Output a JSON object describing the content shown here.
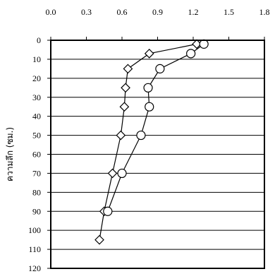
{
  "chart_data": {
    "type": "scatter",
    "title": "",
    "xlabel": "",
    "ylabel": "ความลึก (ซม.)",
    "xlim": [
      0,
      1.8
    ],
    "ylim": [
      0,
      120
    ],
    "x_axis_position": "top",
    "y_axis_inverted": true,
    "x_ticks": [
      "0.0",
      "0.3",
      "0.6",
      "0.9",
      "1.2",
      "1.5",
      "1.8"
    ],
    "y_ticks": [
      "0",
      "10",
      "20",
      "30",
      "40",
      "50",
      "60",
      "70",
      "80",
      "90",
      "100",
      "110",
      "120"
    ],
    "grid": "horizontal",
    "series": [
      {
        "marker": "diamond",
        "points": [
          {
            "x": 1.23,
            "y": 2
          },
          {
            "x": 0.83,
            "y": 7
          },
          {
            "x": 0.65,
            "y": 15
          },
          {
            "x": 0.63,
            "y": 25
          },
          {
            "x": 0.62,
            "y": 35
          },
          {
            "x": 0.59,
            "y": 50
          },
          {
            "x": 0.52,
            "y": 70
          },
          {
            "x": 0.45,
            "y": 90
          },
          {
            "x": 0.41,
            "y": 105
          }
        ]
      },
      {
        "marker": "circle",
        "points": [
          {
            "x": 1.29,
            "y": 2
          },
          {
            "x": 1.18,
            "y": 7
          },
          {
            "x": 0.92,
            "y": 15
          },
          {
            "x": 0.82,
            "y": 25
          },
          {
            "x": 0.83,
            "y": 35
          },
          {
            "x": 0.76,
            "y": 50
          },
          {
            "x": 0.6,
            "y": 70
          },
          {
            "x": 0.48,
            "y": 90
          }
        ]
      }
    ]
  }
}
